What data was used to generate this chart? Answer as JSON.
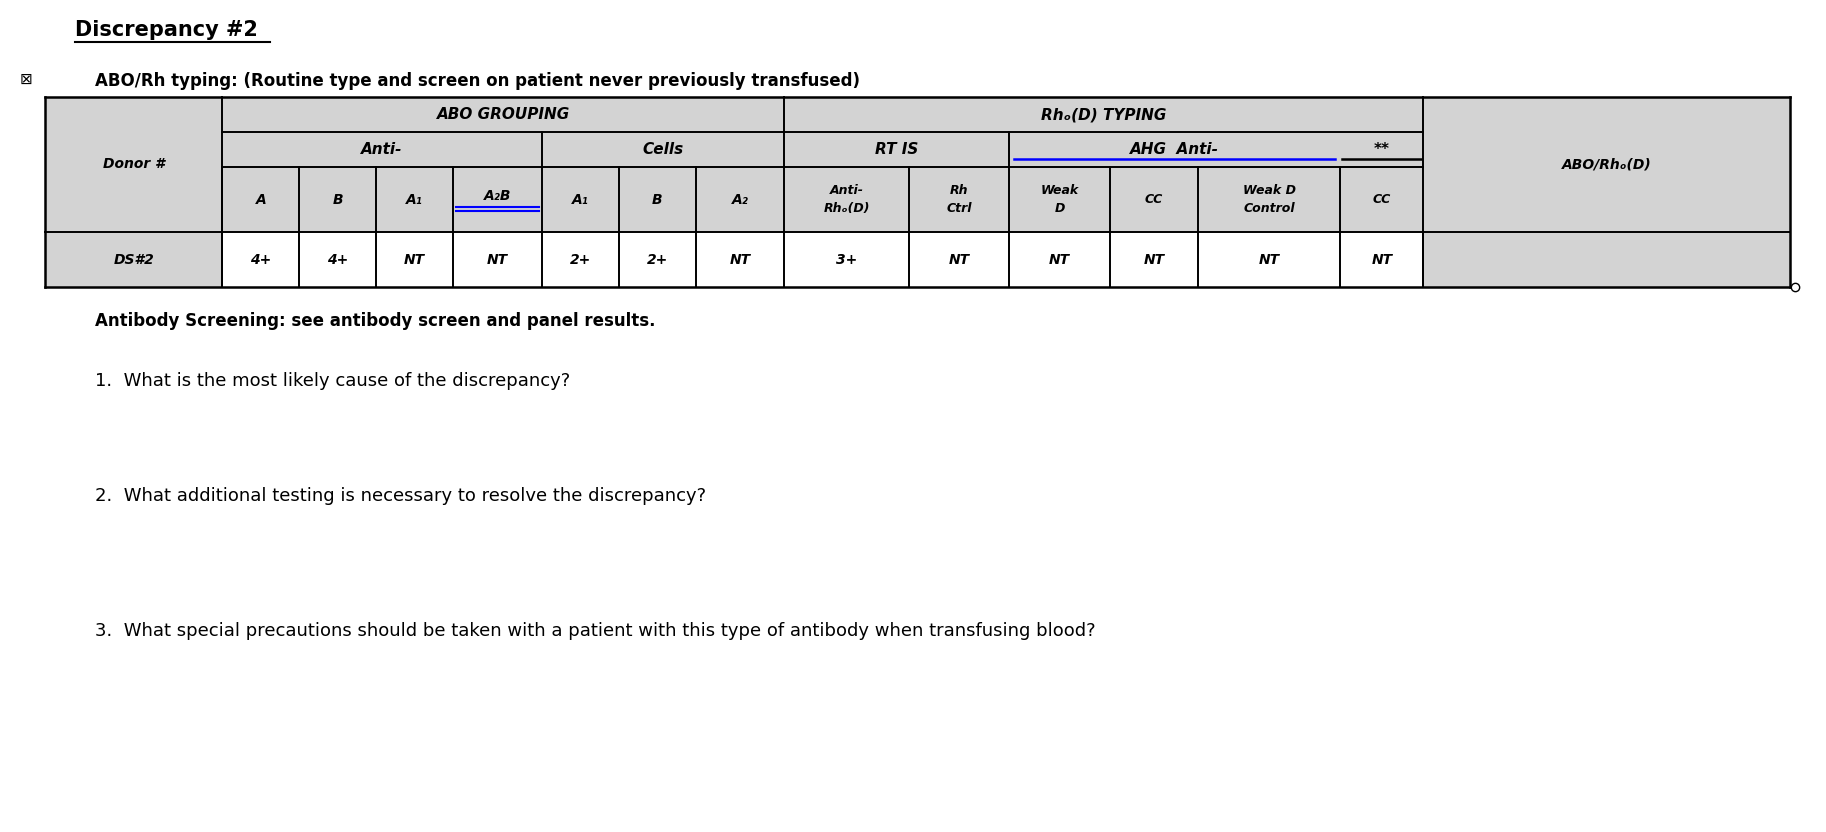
{
  "title": "Discrepancy #2",
  "subtitle": "ABO/Rh typing: (Routine type and screen on patient never previously transfused)",
  "bg_color": "#ffffff",
  "table_bg_header": "#d3d3d3",
  "table_bg_white": "#ffffff",
  "antibody_screening_text": "Antibody Screening: see antibody screen and panel results.",
  "questions": [
    "1.  What is the most likely cause of the discrepancy?",
    "2.  What additional testing is necessary to resolve the discrepancy?",
    "3.  What special precautions should be taken with a patient with this type of antibody when transfusing blood?"
  ],
  "donor_label": "Donor #",
  "ds_label": "DS#2",
  "abo_grouping_label": "ABO GROUPING",
  "rh_typing_label": "Rhₒ(D) TYPING",
  "anti_label": "Anti-",
  "cells_label": "Cells",
  "rtis_label": "RT IS",
  "ahg_anti_label": "AHG  Anti-",
  "abo_rho_label": "ABO/Rhₒ(D)",
  "data_row": [
    "4+",
    "4+",
    "NT",
    "NT",
    "2+",
    "2+",
    "NT",
    "3+",
    "NT",
    "NT",
    "NT",
    "NT",
    "NT"
  ],
  "title_fontsize": 15,
  "subtitle_fontsize": 12,
  "header_fontsize": 11,
  "cell_fontsize": 10,
  "text_fontsize": 12,
  "question_fontsize": 13
}
